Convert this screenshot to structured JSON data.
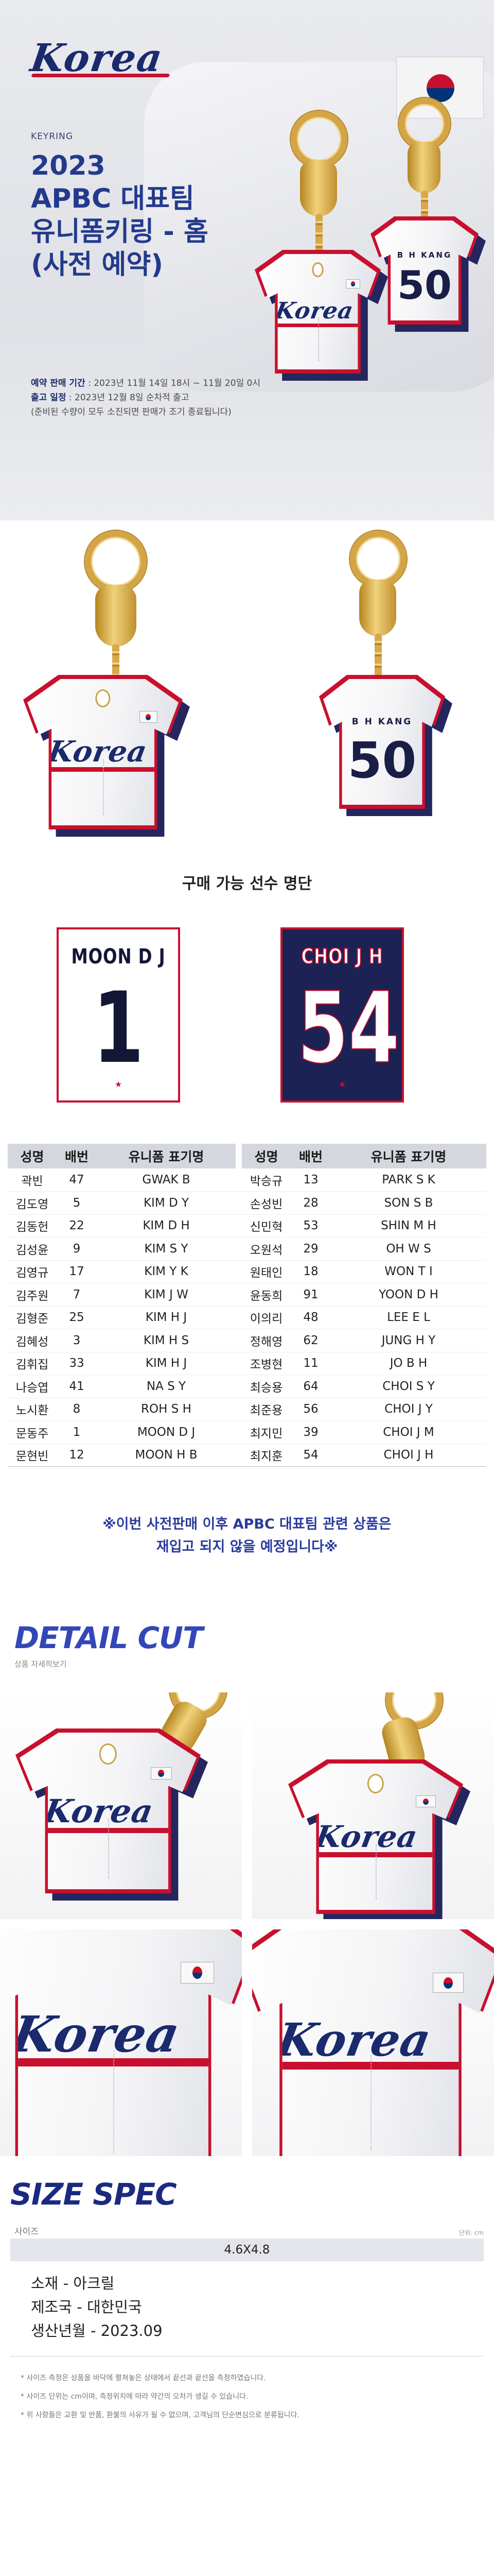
{
  "hero": {
    "logo": "Korea",
    "kicker": "KEYRING",
    "title_lines": [
      "2023",
      "APBC 대표팀",
      "유니폼키링 - 홈",
      "(사전 예약)"
    ],
    "info": [
      {
        "label": "예약 판매 기간",
        "text": " : 2023년 11월 14일 18시 ~ 11월 20일 0시"
      },
      {
        "label": "출고 일정",
        "text": " : 2023년 12월 8일 순차적 출고"
      },
      {
        "label": "",
        "text": "(준비된 수량이 모두 소진되면 판매가 조기 종료됩니다)"
      }
    ],
    "back_name": "B H KANG",
    "back_number": "50"
  },
  "showcase": {
    "front_logo": "Korea",
    "back_name": "B H KANG",
    "back_number": "50"
  },
  "roster": {
    "title": "구매 가능 선수 명단",
    "samples": [
      {
        "name": "MOON D J",
        "number": "1"
      },
      {
        "name": "CHOI J H",
        "number": "54"
      }
    ],
    "headers": [
      "성명",
      "배번",
      "유니폼 표기명"
    ],
    "left": [
      [
        "곽빈",
        "47",
        "GWAK B"
      ],
      [
        "김도영",
        "5",
        "KIM D Y"
      ],
      [
        "김동헌",
        "22",
        "KIM D H"
      ],
      [
        "김성윤",
        "9",
        "KIM S Y"
      ],
      [
        "김영규",
        "17",
        "KIM Y K"
      ],
      [
        "김주원",
        "7",
        "KIM J W"
      ],
      [
        "김형준",
        "25",
        "KIM H J"
      ],
      [
        "김혜성",
        "3",
        "KIM H S"
      ],
      [
        "김휘집",
        "33",
        "KIM H J"
      ],
      [
        "나승엽",
        "41",
        "NA S Y"
      ],
      [
        "노시환",
        "8",
        "ROH S H"
      ],
      [
        "문동주",
        "1",
        "MOON D J"
      ],
      [
        "문현빈",
        "12",
        "MOON H B"
      ]
    ],
    "right": [
      [
        "박승규",
        "13",
        "PARK S K"
      ],
      [
        "손성빈",
        "28",
        "SON S B"
      ],
      [
        "신민혁",
        "53",
        "SHIN M H"
      ],
      [
        "오원석",
        "29",
        "OH W S"
      ],
      [
        "원태인",
        "18",
        "WON T I"
      ],
      [
        "윤동희",
        "91",
        "YOON D H"
      ],
      [
        "이의리",
        "48",
        "LEE E L"
      ],
      [
        "정해영",
        "62",
        "JUNG H Y"
      ],
      [
        "조병현",
        "11",
        "JO B H"
      ],
      [
        "최승용",
        "64",
        "CHOI S Y"
      ],
      [
        "최준용",
        "56",
        "CHOI J Y"
      ],
      [
        "최지민",
        "39",
        "CHOI J M"
      ],
      [
        "최지훈",
        "54",
        "CHOI J H"
      ]
    ],
    "notice_lines": [
      "※이번 사전판매 이후 APBC 대표팀 관련 상품은",
      "재입고 되지 않을 예정입니다※"
    ]
  },
  "detail": {
    "title": "DETAIL CUT",
    "subtitle": "상품 자세히보기",
    "logo": "Korea"
  },
  "size": {
    "title": "SIZE SPEC",
    "label": "사이즈",
    "unit": "단위: cm",
    "value": "4.6X4.8",
    "lines": [
      "소재 - 아크릴",
      "제조국 - 대한민국",
      "생산년월 - 2023.09"
    ],
    "notes": [
      "* 사이즈 측정은 상품을 바닥에 펼쳐놓은 상태에서 끝선과 끝선을 측정하였습니다.",
      "* 사이즈 단위는 cm이며, 측정위치에 따라 약간의 오차가 생길 수 있습니다.",
      "* 위 사항들은 교환 및 반품, 환불의 사유가 될 수 없으며, 고객님의 단순변심으로 분류됩니다."
    ]
  },
  "colors": {
    "navy": "#1a2a6c",
    "red": "#c8102e",
    "blue_title": "#233a8c",
    "gold": "#d3a546"
  }
}
